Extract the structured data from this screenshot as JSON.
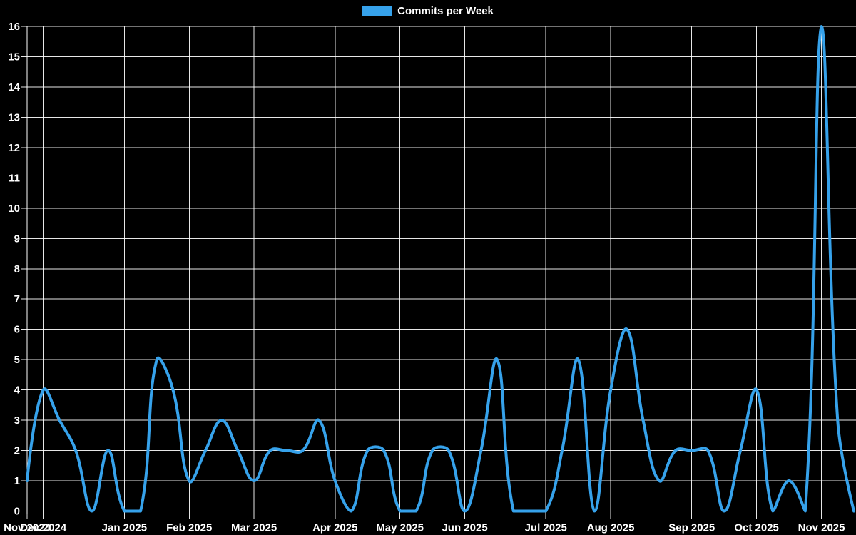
{
  "legend": {
    "label": "Commits per Week"
  },
  "chart_data": {
    "type": "line",
    "title": "Commits per Week",
    "legend_position": "top",
    "x_unit": "week",
    "values": [
      1,
      4,
      3,
      2,
      0,
      2,
      0,
      0,
      5,
      4,
      1,
      2,
      3,
      2,
      1,
      2,
      2,
      2,
      3,
      1,
      0,
      2,
      2,
      0,
      0,
      2,
      2,
      0,
      2,
      5,
      0,
      0,
      0,
      2,
      5,
      0,
      4,
      6,
      3,
      1,
      2,
      2,
      2,
      0,
      2,
      4,
      0,
      1,
      0,
      16,
      3,
      0
    ],
    "month_ticks": [
      {
        "week_index": 0,
        "label": "Nov 2024"
      },
      {
        "week_index": 1,
        "label": "Dec 2024"
      },
      {
        "week_index": 6,
        "label": "Jan 2025"
      },
      {
        "week_index": 10,
        "label": "Feb 2025"
      },
      {
        "week_index": 14,
        "label": "Mar 2025"
      },
      {
        "week_index": 19,
        "label": "Apr 2025"
      },
      {
        "week_index": 23,
        "label": "May 2025"
      },
      {
        "week_index": 27,
        "label": "Jun 2025"
      },
      {
        "week_index": 32,
        "label": "Jul 2025"
      },
      {
        "week_index": 36,
        "label": "Aug 2025"
      },
      {
        "week_index": 41,
        "label": "Sep 2025"
      },
      {
        "week_index": 45,
        "label": "Oct 2025"
      },
      {
        "week_index": 49,
        "label": "Nov 2025"
      }
    ],
    "ylim": [
      0,
      16
    ],
    "y_tick_step": 1,
    "y_tick_labels": [
      "0",
      "1",
      "2",
      "3",
      "4",
      "5",
      "6",
      "7",
      "8",
      "9",
      "10",
      "11",
      "12",
      "13",
      "14",
      "15",
      "16"
    ],
    "grid": true,
    "line_tension": 0.4,
    "line_width": 4,
    "colors": {
      "line": "#36a2eb",
      "background": "#000000",
      "grid": "#ffffff",
      "text": "#ffffff"
    }
  }
}
